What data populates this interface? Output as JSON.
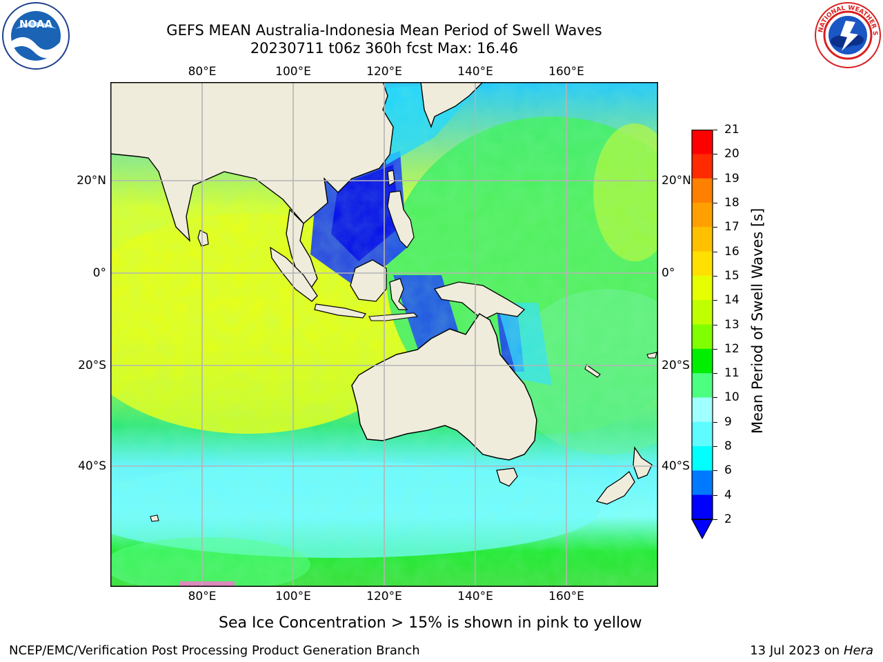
{
  "header": {
    "title_line1": "GEFS MEAN Australia-Indonesia Mean Period of Swell Waves",
    "title_line2": "20230711 t06z 360h fcst   Max: 16.46"
  },
  "logos": {
    "left": "NOAA",
    "left_ring": "NATIONAL OCEANIC AND ATMOSPHERIC ADMINISTRATION · U.S. DEPARTMENT OF COMMERCE ·",
    "right_ring": "NATIONAL WEATHER SERVICE"
  },
  "map": {
    "lon_labels": [
      "80°E",
      "100°E",
      "120°E",
      "140°E",
      "160°E"
    ],
    "lat_labels": [
      "20°N",
      "0°",
      "20°S",
      "40°S"
    ],
    "lat_labels_right": [
      "20°N",
      "0°",
      "20°S",
      "40°S"
    ],
    "colors": {
      "land": "#efecdc",
      "grid": "#b4b4b4",
      "coast": "#000000"
    }
  },
  "colorbar": {
    "label": "Mean Period of Swell Waves [s]",
    "ticks": [
      "21",
      "20",
      "19",
      "18",
      "17",
      "16",
      "15",
      "14",
      "13",
      "12",
      "11",
      "10",
      "9",
      "8",
      "6",
      "4",
      "2"
    ],
    "colors": [
      "#ff0000",
      "#ff2a00",
      "#ff5500",
      "#ff7f00",
      "#ffa000",
      "#ffc000",
      "#ffe000",
      "#ffff00",
      "#e6ff00",
      "#c0ff00",
      "#80ff00",
      "#00ee00",
      "#00dd00",
      "#4cff80",
      "#a0ffff",
      "#5ffcff",
      "#00ffff",
      "#00c8ff",
      "#0078ff",
      "#0000ff"
    ],
    "extend_color": "#0000ff"
  },
  "notes": {
    "sea_ice": "Sea Ice Concentration > 15% is shown in pink to yellow",
    "credit": "NCEP/EMC/Verification Post Processing Product Generation Branch",
    "date": "13 Jul 2023 on ",
    "machine": "Hera"
  }
}
